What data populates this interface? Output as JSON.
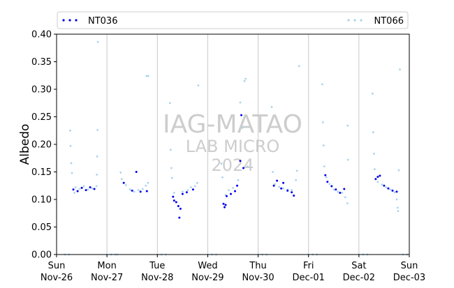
{
  "chart_data": {
    "type": "scatter",
    "title": "",
    "xlabel": "",
    "ylabel": "Albedo",
    "ylim": [
      0.0,
      0.4
    ],
    "xlim": [
      "2023-11-26 00:00",
      "2023-12-03 00:00"
    ],
    "yticks": [
      "0.00",
      "0.05",
      "0.10",
      "0.15",
      "0.20",
      "0.25",
      "0.30",
      "0.35",
      "0.40"
    ],
    "xticks": [
      {
        "day": "Sun",
        "date": "Nov-26"
      },
      {
        "day": "Mon",
        "date": "Nov-27"
      },
      {
        "day": "Tue",
        "date": "Nov-28"
      },
      {
        "day": "Wed",
        "date": "Nov-29"
      },
      {
        "day": "Thu",
        "date": "Nov-30"
      },
      {
        "day": "Fri",
        "date": "Dec-01"
      },
      {
        "day": "Sat",
        "date": "Dec-02"
      },
      {
        "day": "Sun",
        "date": "Dec-03"
      }
    ],
    "grid": "vertical lines at day boundaries",
    "legend_position": "top, spanning width",
    "watermark": [
      "IAG-MATAO",
      "LAB MICRO",
      "2024"
    ],
    "series": [
      {
        "name": "NT036",
        "color": "#0000ee",
        "points": [
          [
            "2023-11-26 08:00",
            0.118
          ],
          [
            "2023-11-26 10:00",
            0.115
          ],
          [
            "2023-11-26 12:00",
            0.121
          ],
          [
            "2023-11-26 14:00",
            0.117
          ],
          [
            "2023-11-26 16:00",
            0.122
          ],
          [
            "2023-11-26 18:00",
            0.119
          ],
          [
            "2023-11-27 08:00",
            0.13
          ],
          [
            "2023-11-27 12:00",
            0.116
          ],
          [
            "2023-11-27 14:00",
            0.15
          ],
          [
            "2023-11-27 16:00",
            0.114
          ],
          [
            "2023-11-27 19:00",
            0.115
          ],
          [
            "2023-11-28 07:30",
            0.105
          ],
          [
            "2023-11-28 08:00",
            0.098
          ],
          [
            "2023-11-28 09:00",
            0.095
          ],
          [
            "2023-11-28 10:00",
            0.088
          ],
          [
            "2023-11-28 11:00",
            0.083
          ],
          [
            "2023-11-28 10:30",
            0.067
          ],
          [
            "2023-11-28 12:00",
            0.11
          ],
          [
            "2023-11-28 14:00",
            0.113
          ],
          [
            "2023-11-28 17:00",
            0.118
          ],
          [
            "2023-11-29 07:30",
            0.092
          ],
          [
            "2023-11-29 08:00",
            0.086
          ],
          [
            "2023-11-29 08:30",
            0.09
          ],
          [
            "2023-11-29 09:00",
            0.106
          ],
          [
            "2023-11-29 11:00",
            0.11
          ],
          [
            "2023-11-29 13:00",
            0.115
          ],
          [
            "2023-11-29 14:00",
            0.125
          ],
          [
            "2023-11-29 16:00",
            0.253
          ],
          [
            "2023-11-29 15:30",
            0.17
          ],
          [
            "2023-11-29 17:00",
            0.157
          ],
          [
            "2023-11-30 07:30",
            0.125
          ],
          [
            "2023-11-30 09:00",
            0.134
          ],
          [
            "2023-11-30 11:00",
            0.12
          ],
          [
            "2023-11-30 12:00",
            0.13
          ],
          [
            "2023-11-30 14:00",
            0.116
          ],
          [
            "2023-11-30 16:00",
            0.113
          ],
          [
            "2023-11-30 17:00",
            0.107
          ],
          [
            "2023-12-01 08:00",
            0.144
          ],
          [
            "2023-12-01 09:00",
            0.132
          ],
          [
            "2023-12-01 11:00",
            0.124
          ],
          [
            "2023-12-01 13:00",
            0.118
          ],
          [
            "2023-12-01 15:00",
            0.112
          ],
          [
            "2023-12-01 17:00",
            0.119
          ],
          [
            "2023-12-02 08:00",
            0.137
          ],
          [
            "2023-12-02 09:00",
            0.141
          ],
          [
            "2023-12-02 10:00",
            0.143
          ],
          [
            "2023-12-02 12:00",
            0.125
          ],
          [
            "2023-12-02 14:00",
            0.12
          ],
          [
            "2023-12-02 16:00",
            0.116
          ],
          [
            "2023-12-02 18:00",
            0.114
          ]
        ]
      },
      {
        "name": "NT066",
        "color": "#a8d4ec",
        "points": [
          [
            "2023-11-26 04:00",
            0.0
          ],
          [
            "2023-11-26 06:00",
            0.0
          ],
          [
            "2023-11-26 06:30",
            0.225
          ],
          [
            "2023-11-26 06:40",
            0.197
          ],
          [
            "2023-11-26 07:00",
            0.166
          ],
          [
            "2023-11-26 07:20",
            0.148
          ],
          [
            "2023-11-26 08:30",
            0.112
          ],
          [
            "2023-11-26 09:00",
            0.122
          ],
          [
            "2023-11-26 11:00",
            0.119
          ],
          [
            "2023-11-26 13:00",
            0.124
          ],
          [
            "2023-11-26 15:00",
            0.118
          ],
          [
            "2023-11-26 17:00",
            0.12
          ],
          [
            "2023-11-26 19:00",
            0.124
          ],
          [
            "2023-11-26 19:10",
            0.145
          ],
          [
            "2023-11-26 19:20",
            0.178
          ],
          [
            "2023-11-26 19:30",
            0.226
          ],
          [
            "2023-11-26 19:40",
            0.386
          ],
          [
            "2023-11-27 00:00",
            0.0
          ],
          [
            "2023-11-27 02:00",
            0.0
          ],
          [
            "2023-11-27 04:00",
            0.0
          ],
          [
            "2023-11-27 05:00",
            0.0
          ],
          [
            "2023-11-27 06:30",
            0.149
          ],
          [
            "2023-11-27 07:00",
            0.137
          ],
          [
            "2023-11-27 09:00",
            0.126
          ],
          [
            "2023-11-27 11:00",
            0.118
          ],
          [
            "2023-11-27 13:00",
            0.114
          ],
          [
            "2023-11-27 15:00",
            0.117
          ],
          [
            "2023-11-27 17:00",
            0.119
          ],
          [
            "2023-11-27 18:30",
            0.125
          ],
          [
            "2023-11-27 19:30",
            0.13
          ],
          [
            "2023-11-27 18:50",
            0.324
          ],
          [
            "2023-11-27 19:40",
            0.324
          ],
          [
            "2023-11-28 00:00",
            0.0
          ],
          [
            "2023-11-28 02:00",
            0.0
          ],
          [
            "2023-11-28 04:00",
            0.0
          ],
          [
            "2023-11-28 06:00",
            0.275
          ],
          [
            "2023-11-28 06:20",
            0.19
          ],
          [
            "2023-11-28 06:40",
            0.157
          ],
          [
            "2023-11-28 07:00",
            0.139
          ],
          [
            "2023-11-28 08:00",
            0.112
          ],
          [
            "2023-11-28 12:00",
            0.114
          ],
          [
            "2023-11-28 14:30",
            0.117
          ],
          [
            "2023-11-28 16:00",
            0.122
          ],
          [
            "2023-11-28 18:00",
            0.124
          ],
          [
            "2023-11-28 19:00",
            0.13
          ],
          [
            "2023-11-28 19:30",
            0.307
          ],
          [
            "2023-11-29 00:00",
            0.0
          ],
          [
            "2023-11-29 02:00",
            0.0
          ],
          [
            "2023-11-29 04:00",
            0.0
          ],
          [
            "2023-11-29 06:30",
            0.165
          ],
          [
            "2023-11-29 07:00",
            0.14
          ],
          [
            "2023-11-29 08:30",
            0.108
          ],
          [
            "2023-11-29 10:00",
            0.117
          ],
          [
            "2023-11-29 12:00",
            0.121
          ],
          [
            "2023-11-29 14:30",
            0.135
          ],
          [
            "2023-11-29 15:30",
            0.276
          ],
          [
            "2023-11-29 16:30",
            0.23
          ],
          [
            "2023-11-29 17:30",
            0.315
          ],
          [
            "2023-11-29 18:00",
            0.319
          ],
          [
            "2023-11-29 19:00",
            0.16
          ],
          [
            "2023-11-30 00:00",
            0.0
          ],
          [
            "2023-11-30 02:00",
            0.0
          ],
          [
            "2023-11-30 04:00",
            0.0
          ],
          [
            "2023-11-30 06:30",
            0.268
          ],
          [
            "2023-11-30 07:00",
            0.15
          ],
          [
            "2023-11-30 08:00",
            0.128
          ],
          [
            "2023-11-30 10:00",
            0.123
          ],
          [
            "2023-11-30 12:00",
            0.12
          ],
          [
            "2023-11-30 14:00",
            0.118
          ],
          [
            "2023-11-30 16:00",
            0.117
          ],
          [
            "2023-11-30 18:00",
            0.135
          ],
          [
            "2023-11-30 18:30",
            0.152
          ],
          [
            "2023-11-30 19:30",
            0.342
          ],
          [
            "2023-12-01 00:00",
            0.0
          ],
          [
            "2023-12-01 02:00",
            0.0
          ],
          [
            "2023-12-01 04:00",
            0.0
          ],
          [
            "2023-12-01 06:30",
            0.309
          ],
          [
            "2023-12-01 06:50",
            0.24
          ],
          [
            "2023-12-01 07:10",
            0.198
          ],
          [
            "2023-12-01 07:30",
            0.16
          ],
          [
            "2023-12-01 08:30",
            0.14
          ],
          [
            "2023-12-01 10:00",
            0.128
          ],
          [
            "2023-12-01 12:00",
            0.118
          ],
          [
            "2023-12-01 14:00",
            0.114
          ],
          [
            "2023-12-01 16:00",
            0.112
          ],
          [
            "2023-12-01 17:30",
            0.104
          ],
          [
            "2023-12-01 18:30",
            0.093
          ],
          [
            "2023-12-01 18:40",
            0.234
          ],
          [
            "2023-12-01 18:50",
            0.172
          ],
          [
            "2023-12-02 00:00",
            0.0
          ],
          [
            "2023-12-02 02:00",
            0.0
          ],
          [
            "2023-12-02 04:00",
            0.0
          ],
          [
            "2023-12-02 06:30",
            0.292
          ],
          [
            "2023-12-02 06:50",
            0.222
          ],
          [
            "2023-12-02 07:10",
            0.183
          ],
          [
            "2023-12-02 07:30",
            0.155
          ],
          [
            "2023-12-02 09:00",
            0.132
          ],
          [
            "2023-12-02 11:00",
            0.127
          ],
          [
            "2023-12-02 13:00",
            0.122
          ],
          [
            "2023-12-02 15:00",
            0.118
          ],
          [
            "2023-12-02 17:00",
            0.113
          ],
          [
            "2023-12-02 18:00",
            0.1
          ],
          [
            "2023-12-02 18:30",
            0.085
          ],
          [
            "2023-12-02 18:40",
            0.079
          ],
          [
            "2023-12-02 19:00",
            0.153
          ],
          [
            "2023-12-02 19:30",
            0.336
          ],
          [
            "2023-12-02 21:00",
            0.0
          ],
          [
            "2023-12-02 23:00",
            0.0
          ]
        ]
      }
    ]
  }
}
